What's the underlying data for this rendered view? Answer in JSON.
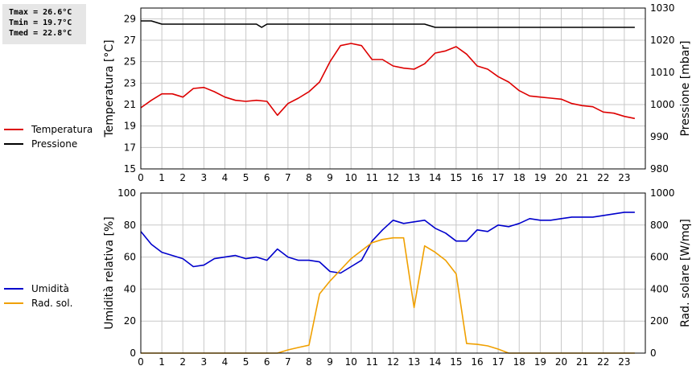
{
  "stats": {
    "tmax": "Tmax = 26.6°C",
    "tmin": "Tmin = 19.7°C",
    "tmed": "Tmed = 22.8°C"
  },
  "legend_top": [
    {
      "label": "Temperatura",
      "color": "#dd0000"
    },
    {
      "label": "Pressione",
      "color": "#000000"
    }
  ],
  "legend_bottom": [
    {
      "label": "Umidità",
      "color": "#0000cc"
    },
    {
      "label": "Rad. sol.",
      "color": "#f0a000"
    }
  ],
  "chart_data": [
    {
      "type": "line",
      "xlim": [
        0,
        24
      ],
      "x_ticks": [
        0,
        1,
        2,
        3,
        4,
        5,
        6,
        7,
        8,
        9,
        10,
        11,
        12,
        13,
        14,
        15,
        16,
        17,
        18,
        19,
        20,
        21,
        22,
        23
      ],
      "ylabel": "Temperatura [°C]",
      "ylim": [
        15,
        30
      ],
      "y_ticks": [
        15,
        17,
        19,
        21,
        23,
        25,
        27,
        29
      ],
      "y2label": "Pressione [mbar]",
      "y2lim": [
        980,
        1030
      ],
      "y2_ticks": [
        980,
        990,
        1000,
        1010,
        1020,
        1030
      ],
      "grid": true,
      "series": [
        {
          "name": "Temperatura",
          "color": "#dd0000",
          "axis": "left",
          "x": [
            0,
            0.5,
            1,
            1.5,
            2,
            2.5,
            3,
            3.5,
            4,
            4.5,
            5,
            5.5,
            6,
            6.5,
            7,
            7.5,
            8,
            8.5,
            9,
            9.5,
            10,
            10.5,
            11,
            11.5,
            12,
            12.5,
            13,
            13.5,
            14,
            14.5,
            15,
            15.5,
            16,
            16.5,
            17,
            17.5,
            18,
            18.5,
            19,
            19.5,
            20,
            20.5,
            21,
            21.5,
            22,
            22.5,
            23,
            23.5
          ],
          "values": [
            20.7,
            21.4,
            22.0,
            22.0,
            21.7,
            22.5,
            22.6,
            22.2,
            21.7,
            21.4,
            21.3,
            21.4,
            21.3,
            20.0,
            21.1,
            21.6,
            22.2,
            23.1,
            25.0,
            26.5,
            26.7,
            26.5,
            25.2,
            25.2,
            24.6,
            24.4,
            24.3,
            24.8,
            25.8,
            26.0,
            26.4,
            25.7,
            24.6,
            24.3,
            23.6,
            23.1,
            22.3,
            21.8,
            21.7,
            21.6,
            21.5,
            21.1,
            20.9,
            20.8,
            20.3,
            20.2,
            19.9,
            19.7
          ]
        },
        {
          "name": "Pressione",
          "color": "#000000",
          "axis": "right",
          "x": [
            0,
            0.5,
            1,
            1.5,
            2,
            2.5,
            3,
            3.5,
            4,
            4.5,
            5,
            5.5,
            5.75,
            6,
            6.5,
            7,
            7.5,
            8,
            8.5,
            9,
            9.5,
            10,
            10.5,
            11,
            11.5,
            12,
            12.5,
            13,
            13.5,
            14,
            14.5,
            15,
            15.5,
            16,
            16.5,
            17,
            17.5,
            18,
            18.5,
            19,
            19.5,
            20,
            20.5,
            21,
            21.5,
            22,
            22.5,
            23,
            23.5
          ],
          "values": [
            1026,
            1026,
            1025,
            1025,
            1025,
            1025,
            1025,
            1025,
            1025,
            1025,
            1025,
            1025,
            1024,
            1025,
            1025,
            1025,
            1025,
            1025,
            1025,
            1025,
            1025,
            1025,
            1025,
            1025,
            1025,
            1025,
            1025,
            1025,
            1025,
            1024,
            1024,
            1024,
            1024,
            1024,
            1024,
            1024,
            1024,
            1024,
            1024,
            1024,
            1024,
            1024,
            1024,
            1024,
            1024,
            1024,
            1024,
            1024,
            1024
          ]
        }
      ]
    },
    {
      "type": "line",
      "xlim": [
        0,
        24
      ],
      "x_ticks": [
        0,
        1,
        2,
        3,
        4,
        5,
        6,
        7,
        8,
        9,
        10,
        11,
        12,
        13,
        14,
        15,
        16,
        17,
        18,
        19,
        20,
        21,
        22,
        23
      ],
      "ylabel": "Umidità relativa [%]",
      "ylim": [
        0,
        100
      ],
      "y_ticks": [
        0,
        20,
        40,
        60,
        80,
        100
      ],
      "y2label": "Rad. solare [W/mq]",
      "y2lim": [
        0,
        1000
      ],
      "y2_ticks": [
        0,
        200,
        400,
        600,
        800,
        1000
      ],
      "grid": true,
      "series": [
        {
          "name": "Umidità",
          "color": "#0000cc",
          "axis": "left",
          "x": [
            0,
            0.5,
            1,
            1.5,
            2,
            2.5,
            3,
            3.5,
            4,
            4.5,
            5,
            5.5,
            6,
            6.5,
            7,
            7.5,
            8,
            8.5,
            9,
            9.5,
            10,
            10.5,
            11,
            11.5,
            12,
            12.5,
            13,
            13.5,
            14,
            14.5,
            15,
            15.5,
            16,
            16.5,
            17,
            17.5,
            18,
            18.5,
            19,
            19.5,
            20,
            20.5,
            21,
            21.5,
            22,
            22.5,
            23,
            23.5
          ],
          "values": [
            76,
            68,
            63,
            61,
            59,
            54,
            55,
            59,
            60,
            61,
            59,
            60,
            58,
            65,
            60,
            58,
            58,
            57,
            51,
            50,
            54,
            58,
            70,
            77,
            83,
            81,
            82,
            83,
            78,
            75,
            70,
            70,
            77,
            76,
            80,
            79,
            81,
            84,
            83,
            83,
            84,
            85,
            85,
            85,
            86,
            87,
            88,
            88
          ]
        },
        {
          "name": "Rad. sol.",
          "color": "#f0a000",
          "axis": "right",
          "x": [
            0,
            0.5,
            1,
            1.5,
            2,
            2.5,
            3,
            3.5,
            4,
            4.5,
            5,
            5.5,
            6,
            6.5,
            7,
            7.5,
            8,
            8.5,
            9,
            9.5,
            10,
            10.5,
            11,
            11.5,
            12,
            12.5,
            13,
            13.5,
            14,
            14.5,
            15,
            15.5,
            16,
            16.5,
            17,
            17.5,
            18,
            18.5,
            19,
            19.5,
            20,
            20.5,
            21,
            21.5,
            22,
            22.5,
            23,
            23.5
          ],
          "values": [
            0,
            0,
            0,
            0,
            0,
            0,
            0,
            0,
            0,
            0,
            0,
            0,
            0,
            0,
            20,
            35,
            50,
            370,
            450,
            520,
            590,
            640,
            690,
            710,
            720,
            720,
            285,
            670,
            630,
            580,
            495,
            60,
            55,
            45,
            25,
            0,
            0,
            0,
            0,
            0,
            0,
            0,
            0,
            0,
            0,
            0,
            0,
            0
          ]
        }
      ]
    }
  ]
}
